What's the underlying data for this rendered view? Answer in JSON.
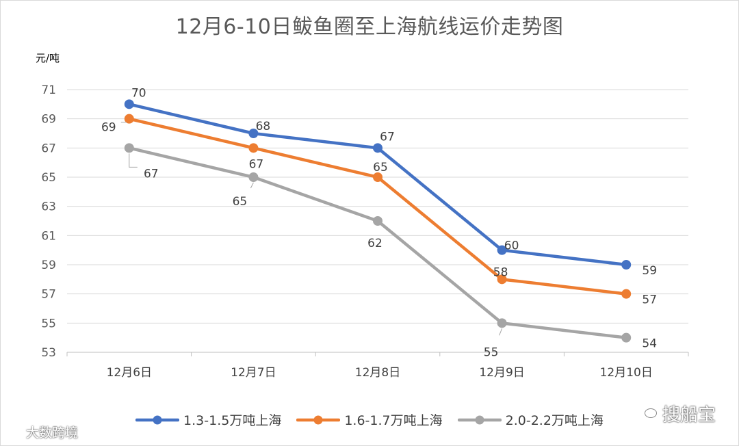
{
  "chart_data": {
    "type": "line",
    "title": "12月6-10日鲅鱼圈至上海航线运价走势图",
    "ylabel": "元/吨",
    "xlabel": "",
    "categories": [
      "12月6日",
      "12月7日",
      "12月8日",
      "12月9日",
      "12月10日"
    ],
    "ylim": [
      53,
      71
    ],
    "yticks": [
      "53",
      "55",
      "57",
      "59",
      "61",
      "63",
      "65",
      "67",
      "69",
      "71"
    ],
    "grid": true,
    "legend_position": "bottom",
    "series": [
      {
        "name": "1.3-1.5万吨上海",
        "color": "#4472C4",
        "values": [
          70,
          68,
          67,
          60,
          59
        ]
      },
      {
        "name": "1.6-1.7万吨上海",
        "color": "#ED7D31",
        "values": [
          69,
          67,
          65,
          58,
          57
        ]
      },
      {
        "name": "2.0-2.2万吨上海",
        "color": "#A5A5A5",
        "values": [
          67,
          65,
          62,
          55,
          54
        ]
      }
    ]
  },
  "watermarks": {
    "left_text": "大数跨境",
    "left_icon": "weibo-icon",
    "right_text": "搜船宝",
    "right_icon": "wechat-icon"
  }
}
